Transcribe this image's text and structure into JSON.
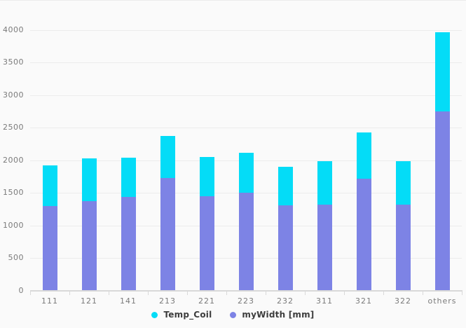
{
  "chart_data": {
    "type": "bar",
    "stacked": true,
    "title": "",
    "xlabel": "",
    "ylabel": "",
    "categories": [
      "111",
      "121",
      "141",
      "213",
      "221",
      "223",
      "232",
      "311",
      "321",
      "322",
      "others"
    ],
    "series": [
      {
        "name": "Temp_Coil",
        "color": "#04dcf7",
        "values": [
          620,
          655,
          595,
          640,
          610,
          610,
          590,
          665,
          715,
          665,
          1215
        ]
      },
      {
        "name": "myWidth [mm]",
        "color": "#7d83e5",
        "values": [
          1290,
          1360,
          1430,
          1720,
          1435,
          1490,
          1300,
          1315,
          1705,
          1315,
          2740
        ]
      }
    ],
    "stack_totals": [
      1910,
      2015,
      2025,
      2360,
      2045,
      2100,
      1890,
      1980,
      2420,
      1980,
      3955
    ],
    "stack_order_bottom_to_top": [
      "myWidth [mm]",
      "Temp_Coil"
    ],
    "y_axis": {
      "min": 0,
      "max": 4000,
      "step": 500,
      "tick_labels": [
        "0",
        "500",
        "1000",
        "1500",
        "2000",
        "2500",
        "3000",
        "3500",
        "4000"
      ]
    },
    "grid": true,
    "legend": {
      "position": "bottom",
      "items": [
        {
          "label": "Temp_Coil",
          "color": "#04dcf7"
        },
        {
          "label": "myWidth [mm]",
          "color": "#7d83e5"
        }
      ]
    }
  },
  "colors": {
    "background": "#fafafa",
    "gridline": "#ececec",
    "axis_line": "#d9d9d9",
    "axis_text": "#7a7a7a",
    "legend_text": "#3d3d3d"
  }
}
